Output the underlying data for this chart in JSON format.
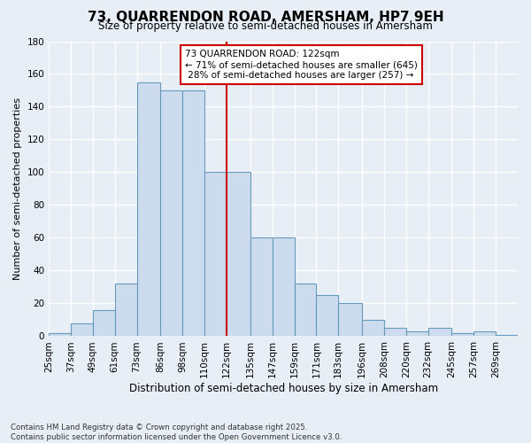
{
  "title": "73, QUARRENDON ROAD, AMERSHAM, HP7 9EH",
  "subtitle": "Size of property relative to semi-detached houses in Amersham",
  "xlabel": "Distribution of semi-detached houses by size in Amersham",
  "ylabel": "Number of semi-detached properties",
  "bins": [
    25,
    37,
    49,
    61,
    73,
    86,
    98,
    110,
    122,
    135,
    147,
    159,
    171,
    183,
    196,
    208,
    220,
    232,
    245,
    257,
    269
  ],
  "bin_width": 13,
  "counts": [
    2,
    8,
    16,
    32,
    155,
    150,
    150,
    100,
    100,
    60,
    60,
    32,
    25,
    20,
    10,
    5,
    3,
    5,
    2,
    3,
    1
  ],
  "property_value": 122,
  "property_label": "73 QUARRENDON ROAD: 122sqm",
  "pct_smaller": 71,
  "pct_smaller_count": 645,
  "pct_larger": 28,
  "pct_larger_count": 257,
  "bar_color": "#ccdcee",
  "bar_edge_color": "#6699bb",
  "vline_color": "#cc0000",
  "annotation_box_color": "#cc0000",
  "background_color": "#e8eef5",
  "grid_color": "#ffffff",
  "ylim": [
    0,
    180
  ],
  "yticks": [
    0,
    20,
    40,
    60,
    80,
    100,
    120,
    140,
    160,
    180
  ],
  "footnote1": "Contains HM Land Registry data © Crown copyright and database right 2025.",
  "footnote2": "Contains public sector information licensed under the Open Government Licence v3.0."
}
